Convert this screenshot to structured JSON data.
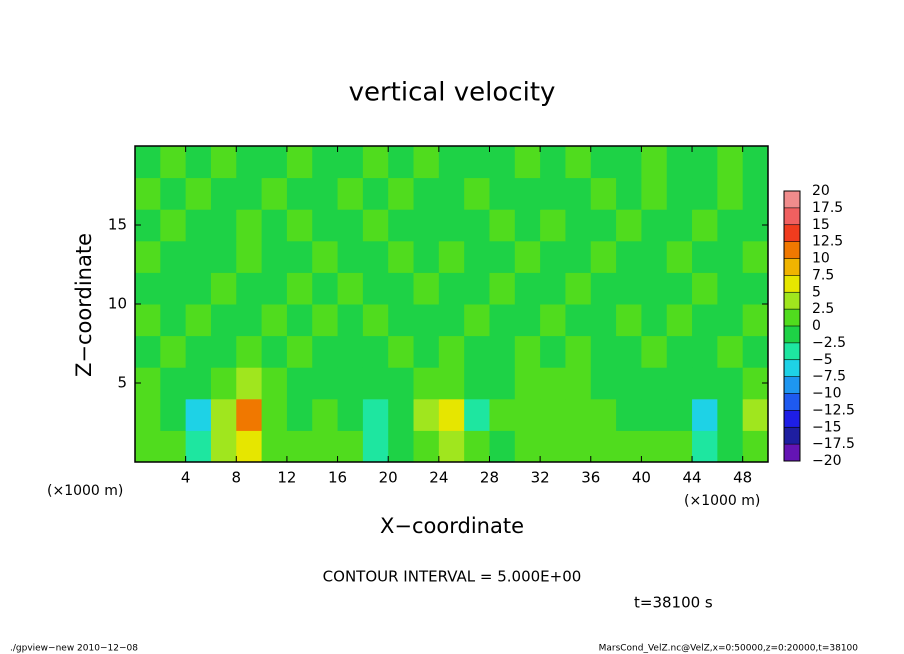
{
  "chart_data": {
    "type": "heatmap",
    "title": "vertical velocity",
    "x_label": "X−coordinate",
    "y_label": "Z−coordinate",
    "x_unit": "(×1000 m)",
    "contour_interval": "CONTOUR INTERVAL = 5.000E+00",
    "time_label": "t=38100 s",
    "footer_left": "./gpview−new   2010−12−08",
    "footer_right": "MarsCond_VelZ.nc@VelZ,x=0:50000,z=0:20000,t=38100",
    "xlim": [
      0,
      50
    ],
    "ylim": [
      0,
      20
    ],
    "xticks": [
      4,
      8,
      12,
      16,
      20,
      24,
      28,
      32,
      36,
      40,
      44,
      48
    ],
    "yticks": [
      5,
      10,
      15
    ],
    "x": [
      1,
      3,
      5,
      7,
      9,
      11,
      13,
      15,
      17,
      19,
      21,
      23,
      25,
      27,
      29,
      31,
      33,
      35,
      37,
      39,
      41,
      43,
      45,
      47,
      49
    ],
    "y": [
      1,
      3,
      5,
      7,
      9,
      11,
      13,
      15,
      17,
      19
    ],
    "values": [
      [
        2,
        1,
        -3,
        3,
        6,
        2,
        1,
        2,
        1,
        -4,
        -2,
        2,
        5,
        1,
        -1,
        2,
        2,
        2,
        2,
        1,
        1,
        1,
        -3,
        -2,
        2
      ],
      [
        1,
        0,
        -6,
        4,
        12,
        2,
        0,
        1,
        0,
        -3,
        -1,
        3,
        7,
        -4,
        1,
        2,
        2,
        2,
        1,
        0,
        0,
        -1,
        -6,
        -1,
        3
      ],
      [
        1,
        0,
        -1,
        1,
        4,
        1,
        0,
        0,
        0,
        0,
        0,
        1,
        2,
        -1,
        0,
        1,
        1,
        1,
        0,
        0,
        0,
        0,
        -1,
        0,
        1
      ],
      [
        0,
        1,
        0,
        -1,
        1,
        0,
        1,
        0,
        -1,
        0,
        1,
        0,
        1,
        0,
        -1,
        1,
        0,
        1,
        0,
        0,
        1,
        0,
        0,
        1,
        0
      ],
      [
        1,
        0,
        1,
        0,
        -1,
        1,
        0,
        1,
        0,
        1,
        0,
        -1,
        0,
        1,
        0,
        0,
        1,
        0,
        -1,
        1,
        0,
        1,
        0,
        0,
        1
      ],
      [
        0,
        -1,
        0,
        1,
        0,
        0,
        1,
        -1,
        1,
        0,
        0,
        1,
        0,
        0,
        1,
        -1,
        0,
        1,
        0,
        0,
        -1,
        0,
        1,
        0,
        0
      ],
      [
        1,
        0,
        0,
        -1,
        1,
        0,
        0,
        1,
        0,
        -1,
        1,
        0,
        1,
        -1,
        0,
        1,
        0,
        0,
        1,
        0,
        0,
        1,
        -1,
        0,
        1
      ],
      [
        0,
        1,
        0,
        0,
        1,
        -1,
        1,
        0,
        0,
        1,
        0,
        0,
        -1,
        0,
        1,
        0,
        1,
        -1,
        0,
        1,
        0,
        0,
        1,
        0,
        0
      ],
      [
        1,
        0,
        1,
        0,
        0,
        1,
        0,
        -1,
        1,
        0,
        1,
        0,
        0,
        1,
        0,
        0,
        -1,
        0,
        1,
        0,
        1,
        0,
        0,
        1,
        0
      ],
      [
        0,
        1,
        0,
        1,
        -1,
        0,
        1,
        0,
        0,
        1,
        0,
        1,
        0,
        0,
        -1,
        1,
        0,
        1,
        0,
        0,
        1,
        -1,
        0,
        1,
        0
      ]
    ],
    "levels": [
      {
        "value": 20,
        "label": "20"
      },
      {
        "value": 17.5,
        "label": "17.5"
      },
      {
        "value": 15,
        "label": "15"
      },
      {
        "value": 12.5,
        "label": "12.5"
      },
      {
        "value": 10,
        "label": "10"
      },
      {
        "value": 7.5,
        "label": "7.5"
      },
      {
        "value": 5,
        "label": "5"
      },
      {
        "value": 2.5,
        "label": "2.5"
      },
      {
        "value": 0,
        "label": "0"
      },
      {
        "value": -2.5,
        "label": "−2.5"
      },
      {
        "value": -5,
        "label": "−5"
      },
      {
        "value": -7.5,
        "label": "−7.5"
      },
      {
        "value": -10,
        "label": "−10"
      },
      {
        "value": -12.5,
        "label": "−12.5"
      },
      {
        "value": -15,
        "label": "−15"
      },
      {
        "value": -17.5,
        "label": "−17.5"
      },
      {
        "value": -20,
        "label": "−20"
      }
    ],
    "colors": [
      "#f08c8c",
      "#f06060",
      "#f03c1e",
      "#f07800",
      "#f0b400",
      "#e6e600",
      "#a0e61e",
      "#50dc1e",
      "#1ed246",
      "#1ee6a0",
      "#1ed2e6",
      "#1e96f0",
      "#1e5af0",
      "#1e1ee6",
      "#1e1ea0",
      "#6414b4"
    ]
  }
}
